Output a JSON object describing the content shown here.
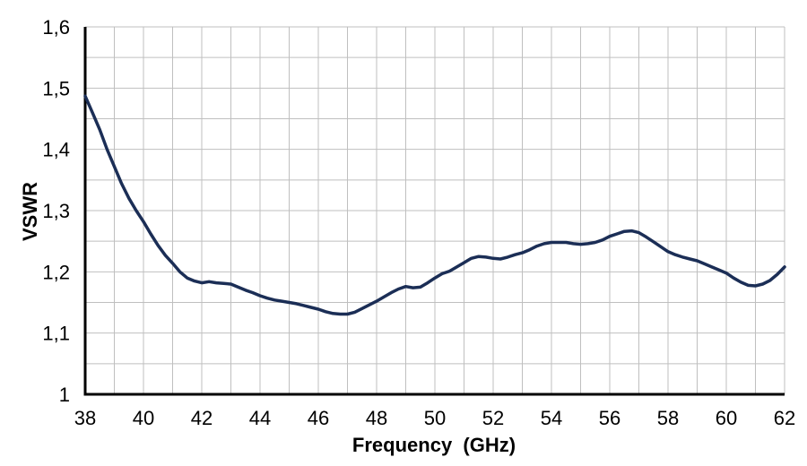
{
  "figure": {
    "background": "#ffffff"
  },
  "chart_data": {
    "type": "line",
    "title": "",
    "xlabel": "Frequency  (GHz)",
    "ylabel": "VSWR",
    "xlim": [
      38,
      62
    ],
    "ylim": [
      1,
      1.6
    ],
    "grid": true,
    "grid_x_step": 1,
    "grid_y_step": 0.05,
    "legend": "none",
    "decimal_separator": ",",
    "x_tick_values": [
      38,
      40,
      42,
      44,
      46,
      48,
      50,
      52,
      54,
      56,
      58,
      60,
      62
    ],
    "x_tick_labels": [
      "38",
      "40",
      "42",
      "44",
      "46",
      "48",
      "50",
      "52",
      "54",
      "56",
      "58",
      "60",
      "62"
    ],
    "y_tick_values": [
      1,
      1.1,
      1.2,
      1.3,
      1.4,
      1.5,
      1.6
    ],
    "y_tick_labels": [
      "1",
      "1,1",
      "1,2",
      "1,3",
      "1,4",
      "1,5",
      "1,6"
    ],
    "colors": {
      "line": "#1b2e56",
      "gridline": "#bfbfbf",
      "axis": "#000000",
      "background": "#ffffff",
      "text": "#000000"
    },
    "series": [
      {
        "name": "VSWR",
        "color": "#1b2e56",
        "points": [
          [
            38.0,
            1.487
          ],
          [
            38.25,
            1.46
          ],
          [
            38.5,
            1.432
          ],
          [
            38.75,
            1.4
          ],
          [
            39.0,
            1.372
          ],
          [
            39.25,
            1.344
          ],
          [
            39.5,
            1.32
          ],
          [
            39.75,
            1.3
          ],
          [
            40.0,
            1.282
          ],
          [
            40.25,
            1.262
          ],
          [
            40.5,
            1.243
          ],
          [
            40.75,
            1.227
          ],
          [
            41.0,
            1.214
          ],
          [
            41.25,
            1.2
          ],
          [
            41.5,
            1.19
          ],
          [
            41.75,
            1.185
          ],
          [
            42.0,
            1.182
          ],
          [
            42.25,
            1.184
          ],
          [
            42.5,
            1.182
          ],
          [
            42.75,
            1.181
          ],
          [
            43.0,
            1.18
          ],
          [
            43.25,
            1.175
          ],
          [
            43.5,
            1.17
          ],
          [
            43.75,
            1.166
          ],
          [
            44.0,
            1.161
          ],
          [
            44.25,
            1.157
          ],
          [
            44.5,
            1.154
          ],
          [
            44.75,
            1.152
          ],
          [
            45.0,
            1.15
          ],
          [
            45.25,
            1.148
          ],
          [
            45.5,
            1.145
          ],
          [
            45.75,
            1.142
          ],
          [
            46.0,
            1.139
          ],
          [
            46.25,
            1.135
          ],
          [
            46.5,
            1.132
          ],
          [
            46.75,
            1.131
          ],
          [
            47.0,
            1.131
          ],
          [
            47.25,
            1.134
          ],
          [
            47.5,
            1.14
          ],
          [
            47.75,
            1.146
          ],
          [
            48.0,
            1.152
          ],
          [
            48.25,
            1.159
          ],
          [
            48.5,
            1.166
          ],
          [
            48.75,
            1.172
          ],
          [
            49.0,
            1.176
          ],
          [
            49.25,
            1.174
          ],
          [
            49.5,
            1.175
          ],
          [
            49.75,
            1.182
          ],
          [
            50.0,
            1.19
          ],
          [
            50.25,
            1.197
          ],
          [
            50.5,
            1.201
          ],
          [
            50.75,
            1.208
          ],
          [
            51.0,
            1.215
          ],
          [
            51.25,
            1.222
          ],
          [
            51.5,
            1.225
          ],
          [
            51.75,
            1.224
          ],
          [
            52.0,
            1.222
          ],
          [
            52.25,
            1.221
          ],
          [
            52.5,
            1.224
          ],
          [
            52.75,
            1.228
          ],
          [
            53.0,
            1.231
          ],
          [
            53.25,
            1.236
          ],
          [
            53.5,
            1.242
          ],
          [
            53.75,
            1.246
          ],
          [
            54.0,
            1.248
          ],
          [
            54.25,
            1.248
          ],
          [
            54.5,
            1.248
          ],
          [
            54.75,
            1.246
          ],
          [
            55.0,
            1.245
          ],
          [
            55.25,
            1.246
          ],
          [
            55.5,
            1.248
          ],
          [
            55.75,
            1.252
          ],
          [
            56.0,
            1.258
          ],
          [
            56.25,
            1.262
          ],
          [
            56.5,
            1.266
          ],
          [
            56.75,
            1.267
          ],
          [
            57.0,
            1.264
          ],
          [
            57.25,
            1.257
          ],
          [
            57.5,
            1.249
          ],
          [
            57.75,
            1.241
          ],
          [
            58.0,
            1.233
          ],
          [
            58.25,
            1.228
          ],
          [
            58.5,
            1.224
          ],
          [
            58.75,
            1.221
          ],
          [
            59.0,
            1.218
          ],
          [
            59.25,
            1.213
          ],
          [
            59.5,
            1.208
          ],
          [
            59.75,
            1.203
          ],
          [
            60.0,
            1.198
          ],
          [
            60.25,
            1.19
          ],
          [
            60.5,
            1.183
          ],
          [
            60.75,
            1.178
          ],
          [
            61.0,
            1.177
          ],
          [
            61.25,
            1.18
          ],
          [
            61.5,
            1.186
          ],
          [
            61.75,
            1.196
          ],
          [
            62.0,
            1.208
          ]
        ]
      }
    ]
  }
}
